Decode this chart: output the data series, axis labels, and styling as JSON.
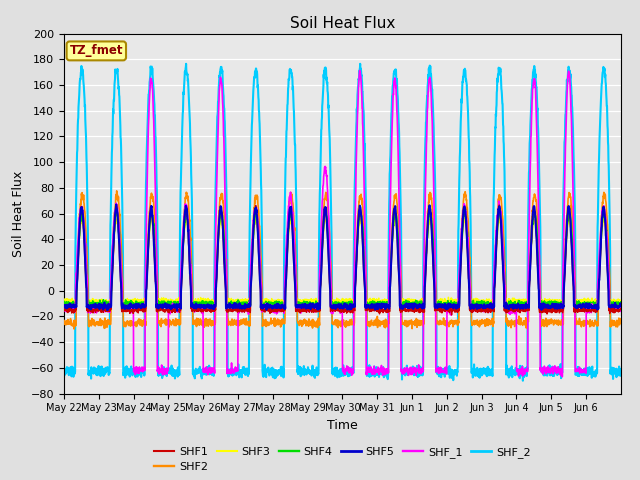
{
  "title": "Soil Heat Flux",
  "ylabel": "Soil Heat Flux",
  "xlabel": "Time",
  "ylim": [
    -80,
    200
  ],
  "yticks": [
    -80,
    -60,
    -40,
    -20,
    0,
    20,
    40,
    60,
    80,
    100,
    120,
    140,
    160,
    180,
    200
  ],
  "annotation_text": "TZ_fmet",
  "annotation_color": "#8B0000",
  "annotation_bg": "#FFFF99",
  "series": [
    "SHF1",
    "SHF2",
    "SHF3",
    "SHF4",
    "SHF5",
    "SHF_1",
    "SHF_2"
  ],
  "colors": {
    "SHF1": "#CC0000",
    "SHF2": "#FF8C00",
    "SHF3": "#FFFF00",
    "SHF4": "#00DD00",
    "SHF5": "#0000CC",
    "SHF_1": "#FF00FF",
    "SHF_2": "#00CCFF"
  },
  "linewidths": {
    "SHF1": 1.0,
    "SHF2": 1.2,
    "SHF3": 1.0,
    "SHF4": 1.2,
    "SHF5": 1.5,
    "SHF_1": 1.2,
    "SHF_2": 1.5
  },
  "n_days": 16,
  "tick_labels": [
    "May 22",
    "May 23",
    "May 24",
    "May 25",
    "May 26",
    "May 27",
    "May 28",
    "May 29",
    "May 30",
    "May 31",
    "Jun 1",
    "Jun 2",
    "Jun 3",
    "Jun 4",
    "Jun 5",
    "Jun 6"
  ],
  "background_color": "#E0E0E0",
  "plot_bg": "#E8E8E8"
}
